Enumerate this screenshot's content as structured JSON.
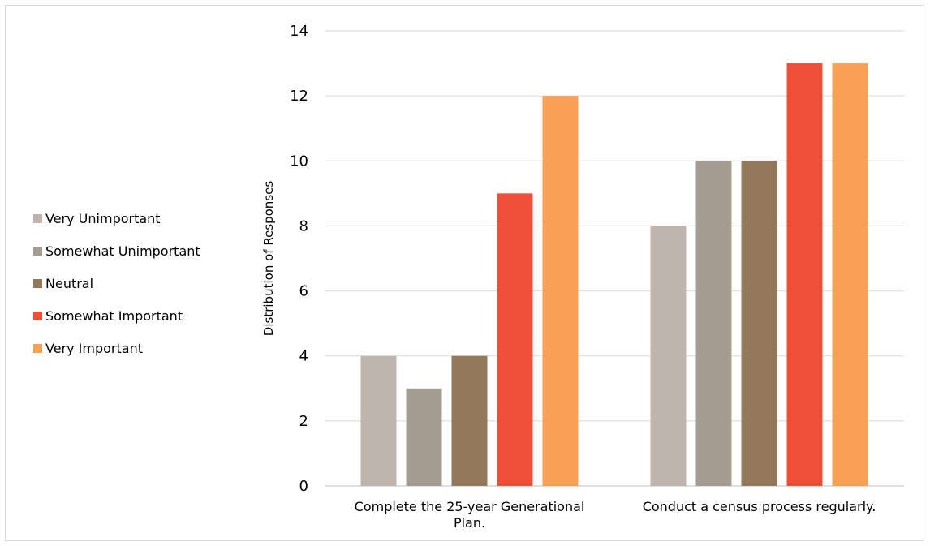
{
  "chart_data": {
    "type": "bar",
    "categories": [
      [
        "Complete the 25-year Generational",
        "Plan."
      ],
      [
        "Conduct a census process regularly."
      ]
    ],
    "series": [
      {
        "name": "Very Unimportant",
        "color": "#bfb5ad",
        "values": [
          4,
          8
        ]
      },
      {
        "name": "Somewhat Unimportant",
        "color": "#a59c91",
        "values": [
          3,
          10
        ]
      },
      {
        "name": "Neutral",
        "color": "#94785a",
        "values": [
          4,
          10
        ]
      },
      {
        "name": "Somewhat Important",
        "color": "#ef4e37",
        "values": [
          9,
          13
        ]
      },
      {
        "name": "Very Important",
        "color": "#f8a155",
        "values": [
          12,
          13
        ]
      }
    ],
    "ylabel": "Distribution of Responses",
    "xlabel": "",
    "ylim": [
      0,
      14
    ],
    "yticks": [
      0,
      2,
      4,
      6,
      8,
      10,
      12,
      14
    ],
    "grid": true,
    "legend_position": "left"
  }
}
